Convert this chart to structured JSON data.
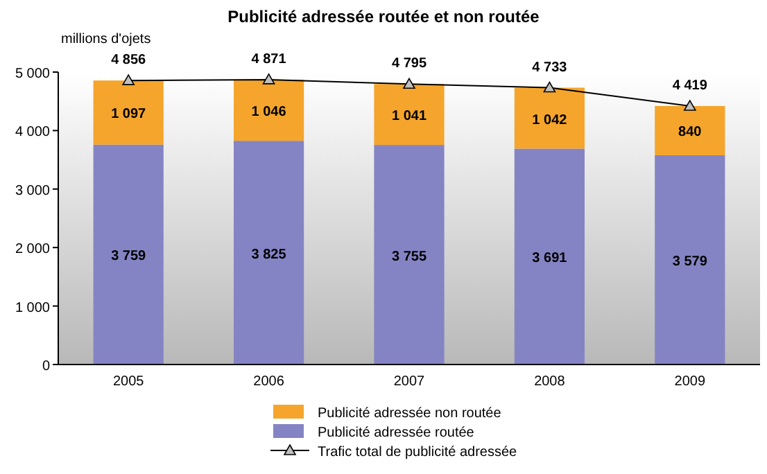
{
  "chart_data": {
    "type": "bar",
    "title": "Publicité adressée routée et non routée",
    "ylabel": "millions d'ojets",
    "categories": [
      "2005",
      "2006",
      "2007",
      "2008",
      "2009"
    ],
    "stacked": true,
    "ylim": [
      0,
      5000
    ],
    "yticks": [
      0,
      {
        "value": 1000,
        "label": "1 000"
      },
      {
        "value": 2000,
        "label": "2 000"
      },
      {
        "value": 3000,
        "label": "3 000"
      },
      {
        "value": 4000,
        "label": "4 000"
      },
      {
        "value": 5000,
        "label": "5 000"
      }
    ],
    "grid": false,
    "legend": "bottom",
    "marker": "triangle",
    "series": [
      {
        "name": "Publicité adressée routée",
        "color": "#8484c4",
        "values": [
          3759,
          3825,
          3755,
          3691,
          3579
        ],
        "value_labels": [
          "3 759",
          "3 825",
          "3 755",
          "3 691",
          "3 579"
        ]
      },
      {
        "name": "Publicité adressée non routée",
        "color": "#f5a52c",
        "values": [
          1097,
          1046,
          1041,
          1042,
          840
        ],
        "value_labels": [
          "1 097",
          "1 046",
          "1 041",
          "1 042",
          "840"
        ]
      },
      {
        "name": "Trafic total de publicité adressée",
        "type": "line",
        "color": "#000000",
        "values": [
          4856,
          4871,
          4795,
          4733,
          4419
        ],
        "value_labels": [
          "4 856",
          "4 871",
          "4 795",
          "4 733",
          "4 419"
        ]
      }
    ]
  }
}
